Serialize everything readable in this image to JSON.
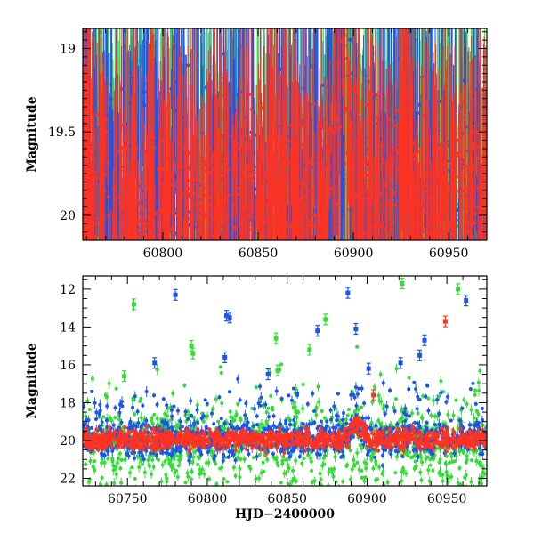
{
  "chart_data": [
    {
      "type": "scatter",
      "panel": "top",
      "title": "",
      "xlabel": "",
      "ylabel": "Magnitude",
      "xlim": [
        60758,
        60970
      ],
      "ylim": [
        20.15,
        18.88
      ],
      "x_ticks_major": [
        60800,
        60850,
        60900,
        60950
      ],
      "y_ticks_major": [
        19,
        19.5,
        20
      ],
      "x_tick_labels": [
        "60800",
        "60850",
        "60900",
        "60950"
      ],
      "y_tick_labels": [
        "19",
        "19.5",
        "20"
      ],
      "grid": false,
      "series": [
        {
          "name": "green",
          "color": "#33dd33"
        },
        {
          "name": "blue",
          "color": "#1a55ee"
        },
        {
          "name": "red",
          "color": "#ff3322"
        }
      ]
    },
    {
      "type": "scatter",
      "panel": "bottom",
      "title": "",
      "xlabel": "HJD−2400000",
      "ylabel": "Magnitude",
      "xlim": [
        60722,
        60975
      ],
      "ylim": [
        22.4,
        11.3
      ],
      "x_ticks_major": [
        60750,
        60800,
        60850,
        60900,
        60950
      ],
      "y_ticks_major": [
        12,
        14,
        16,
        18,
        20,
        22
      ],
      "x_tick_labels": [
        "60750",
        "60800",
        "60850",
        "60900",
        "60950"
      ],
      "y_tick_labels": [
        "12",
        "14",
        "16",
        "18",
        "20",
        "22"
      ],
      "grid": false,
      "series": [
        {
          "name": "green",
          "color": "#33dd33"
        },
        {
          "name": "blue",
          "color": "#1a55ee"
        },
        {
          "name": "red",
          "color": "#ff3322"
        }
      ],
      "outliers": [
        {
          "series": "green",
          "x": 60754,
          "y": 12.8
        },
        {
          "series": "green",
          "x": 60922,
          "y": 11.7
        },
        {
          "series": "green",
          "x": 60957,
          "y": 12.0
        },
        {
          "series": "green",
          "x": 60790,
          "y": 15.0
        },
        {
          "series": "green",
          "x": 60791,
          "y": 15.4
        },
        {
          "series": "green",
          "x": 60843,
          "y": 14.6
        },
        {
          "series": "green",
          "x": 60874,
          "y": 13.6
        },
        {
          "series": "green",
          "x": 60864,
          "y": 15.2
        },
        {
          "series": "green",
          "x": 60844,
          "y": 16.3
        },
        {
          "series": "green",
          "x": 60748,
          "y": 16.6
        },
        {
          "series": "blue",
          "x": 60780,
          "y": 12.3
        },
        {
          "series": "blue",
          "x": 60812,
          "y": 13.4
        },
        {
          "series": "blue",
          "x": 60814,
          "y": 13.5
        },
        {
          "series": "blue",
          "x": 60869,
          "y": 14.2
        },
        {
          "series": "blue",
          "x": 60888,
          "y": 12.2
        },
        {
          "series": "blue",
          "x": 60893,
          "y": 14.1
        },
        {
          "series": "blue",
          "x": 60936,
          "y": 14.7
        },
        {
          "series": "blue",
          "x": 60933,
          "y": 15.5
        },
        {
          "series": "blue",
          "x": 60962,
          "y": 12.6
        },
        {
          "series": "blue",
          "x": 60767,
          "y": 15.9
        },
        {
          "series": "blue",
          "x": 60811,
          "y": 15.6
        },
        {
          "series": "blue",
          "x": 60838,
          "y": 16.5
        },
        {
          "series": "blue",
          "x": 60901,
          "y": 16.2
        },
        {
          "series": "blue",
          "x": 60921,
          "y": 15.9
        },
        {
          "series": "red",
          "x": 60949,
          "y": 13.7
        },
        {
          "series": "red",
          "x": 60904,
          "y": 17.6
        }
      ]
    }
  ]
}
